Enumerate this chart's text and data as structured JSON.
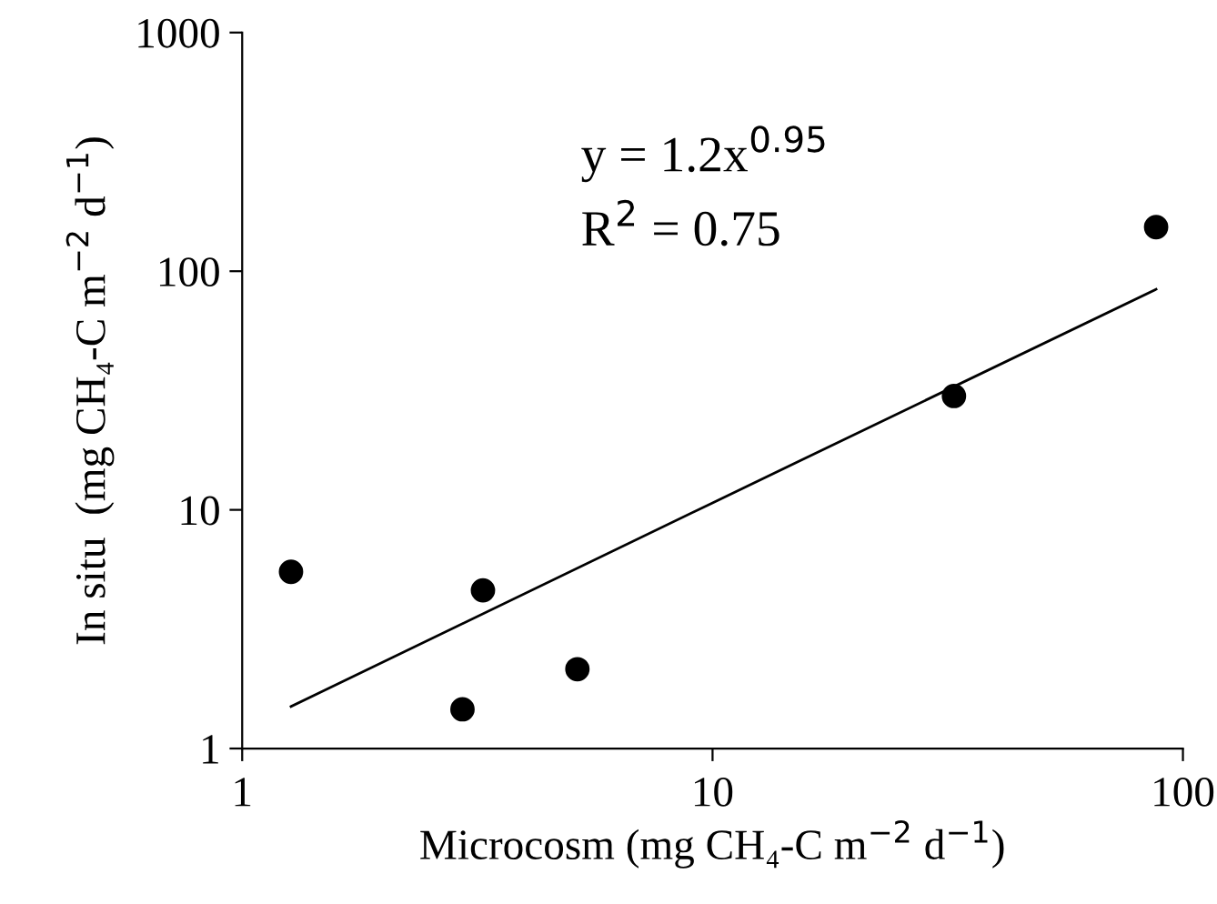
{
  "chart_data": {
    "type": "scatter",
    "xlabel": "Microcosm (mg CH₄-C m$^{−2}$ d$^{−1}$)",
    "ylabel": "In situ  (mg CH₄-C m$^{−2}$ d$^{−1}$)",
    "series": [
      {
        "color": "#000000",
        "x": [
          1.27,
          2.94,
          3.25,
          5.16,
          32.6,
          87.7
        ],
        "values": [
          5.5,
          1.46,
          4.6,
          2.15,
          30,
          153
        ]
      },
      {
        "type": "line",
        "color": "#000000",
        "marker": "none",
        "line_style": "solid",
        "x": [
          1.27,
          10,
          87.7
        ],
        "values": [
          1.5,
          10.7,
          84
        ]
      }
    ],
    "annotations": [
      "y = 1.2x$^{0.95}$",
      "R$^{2}$ = 0.75"
    ],
    "log": "xy",
    "marker": "circle",
    "xlim": [
      1,
      100
    ],
    "xticks": [
      1,
      10,
      100
    ],
    "ylim": [
      1,
      1000
    ],
    "yticks": [
      1,
      10,
      100,
      1000
    ],
    "grid": false,
    "legend": false
  }
}
